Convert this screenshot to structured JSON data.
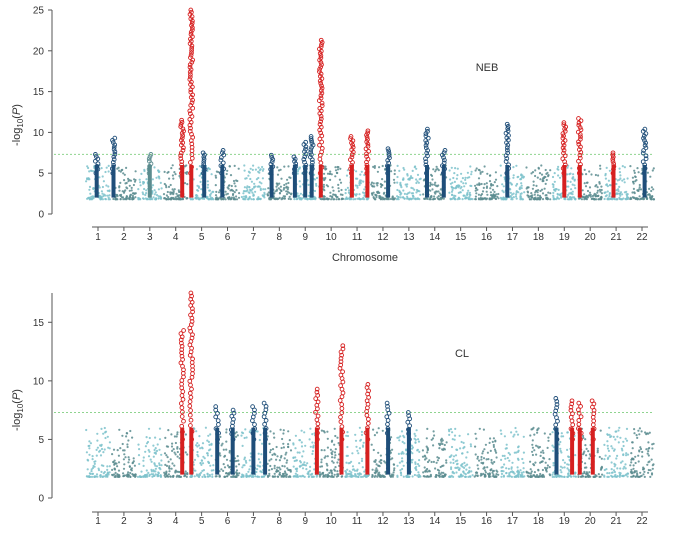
{
  "figure": {
    "panels": [
      "NEB",
      "CL"
    ]
  },
  "colors": {
    "teal": "#5b8c8f",
    "light_teal": "#7dc2cb",
    "dark_blue": "#1f4e79",
    "red": "#d62020",
    "threshold": "#8fd48f",
    "axis": "#555555"
  },
  "chart_data": [
    {
      "type": "scatter",
      "subtype": "manhattan",
      "panel_label": "NEB",
      "ylabel": "-log10(P)",
      "ylabel_parts": {
        "base": "-log",
        "sub": "10",
        "open": "(",
        "var": "P",
        "close": ")"
      },
      "xlabel": "Chromosome",
      "ylim": [
        0,
        25
      ],
      "yticks": [
        0,
        5,
        10,
        15,
        20,
        25
      ],
      "threshold": 7.3,
      "grid": false,
      "chromosomes": [
        "1",
        "2",
        "3",
        "4",
        "5",
        "6",
        "7",
        "8",
        "9",
        "10",
        "11",
        "12",
        "13",
        "14",
        "15",
        "16",
        "17",
        "18",
        "19",
        "20",
        "21",
        "22"
      ],
      "peaks": [
        {
          "chr": "1",
          "pos": 0.45,
          "p": 7.3,
          "color": "dark_blue"
        },
        {
          "chr": "2",
          "pos": 0.1,
          "p": 9.3,
          "color": "dark_blue"
        },
        {
          "chr": "3",
          "pos": 0.5,
          "p": 7.3,
          "color": "teal"
        },
        {
          "chr": "4",
          "pos": 0.75,
          "p": 11.5,
          "color": "red"
        },
        {
          "chr": "5",
          "pos": 0.1,
          "p": 25.0,
          "color": "red"
        },
        {
          "chr": "5",
          "pos": 0.6,
          "p": 7.5,
          "color": "dark_blue"
        },
        {
          "chr": "6",
          "pos": 0.3,
          "p": 7.8,
          "color": "dark_blue"
        },
        {
          "chr": "8",
          "pos": 0.2,
          "p": 7.2,
          "color": "dark_blue"
        },
        {
          "chr": "9",
          "pos": 0.1,
          "p": 7.0,
          "color": "dark_blue"
        },
        {
          "chr": "9",
          "pos": 0.5,
          "p": 8.8,
          "color": "dark_blue"
        },
        {
          "chr": "9",
          "pos": 0.75,
          "p": 9.5,
          "color": "dark_blue"
        },
        {
          "chr": "10",
          "pos": 0.1,
          "p": 21.3,
          "color": "red"
        },
        {
          "chr": "11",
          "pos": 0.3,
          "p": 9.5,
          "color": "red"
        },
        {
          "chr": "11",
          "pos": 0.9,
          "p": 10.2,
          "color": "red"
        },
        {
          "chr": "12",
          "pos": 0.7,
          "p": 8.0,
          "color": "dark_blue"
        },
        {
          "chr": "14",
          "pos": 0.2,
          "p": 10.4,
          "color": "dark_blue"
        },
        {
          "chr": "14",
          "pos": 0.85,
          "p": 7.8,
          "color": "dark_blue"
        },
        {
          "chr": "17",
          "pos": 0.3,
          "p": 11.0,
          "color": "dark_blue"
        },
        {
          "chr": "19",
          "pos": 0.5,
          "p": 11.2,
          "color": "red"
        },
        {
          "chr": "20",
          "pos": 0.1,
          "p": 11.7,
          "color": "red"
        },
        {
          "chr": "21",
          "pos": 0.4,
          "p": 7.5,
          "color": "red"
        },
        {
          "chr": "22",
          "pos": 0.6,
          "p": 10.4,
          "color": "dark_blue"
        }
      ]
    },
    {
      "type": "scatter",
      "subtype": "manhattan",
      "panel_label": "CL",
      "ylabel": "-log10(P)",
      "ylabel_parts": {
        "base": "-log",
        "sub": "10",
        "open": "(",
        "var": "P",
        "close": ")"
      },
      "xlabel": "",
      "ylim": [
        0,
        17.5
      ],
      "yticks": [
        0,
        5,
        10,
        15
      ],
      "threshold": 7.3,
      "grid": false,
      "chromosomes": [
        "1",
        "2",
        "3",
        "4",
        "5",
        "6",
        "7",
        "8",
        "9",
        "10",
        "11",
        "12",
        "13",
        "14",
        "15",
        "16",
        "17",
        "18",
        "19",
        "20",
        "21",
        "22"
      ],
      "peaks": [
        {
          "chr": "4",
          "pos": 0.75,
          "p": 14.3,
          "color": "red"
        },
        {
          "chr": "5",
          "pos": 0.1,
          "p": 17.5,
          "color": "red"
        },
        {
          "chr": "6",
          "pos": 0.1,
          "p": 7.8,
          "color": "dark_blue"
        },
        {
          "chr": "6",
          "pos": 0.7,
          "p": 7.5,
          "color": "dark_blue"
        },
        {
          "chr": "7",
          "pos": 0.5,
          "p": 7.8,
          "color": "dark_blue"
        },
        {
          "chr": "7",
          "pos": 0.95,
          "p": 8.1,
          "color": "dark_blue"
        },
        {
          "chr": "9",
          "pos": 0.95,
          "p": 9.3,
          "color": "red"
        },
        {
          "chr": "10",
          "pos": 0.9,
          "p": 13.0,
          "color": "red"
        },
        {
          "chr": "11",
          "pos": 0.9,
          "p": 9.7,
          "color": "red"
        },
        {
          "chr": "12",
          "pos": 0.7,
          "p": 8.1,
          "color": "dark_blue"
        },
        {
          "chr": "13",
          "pos": 0.5,
          "p": 7.3,
          "color": "dark_blue"
        },
        {
          "chr": "19",
          "pos": 0.2,
          "p": 8.5,
          "color": "dark_blue"
        },
        {
          "chr": "19",
          "pos": 0.8,
          "p": 8.3,
          "color": "red"
        },
        {
          "chr": "20",
          "pos": 0.1,
          "p": 8.1,
          "color": "red"
        },
        {
          "chr": "20",
          "pos": 0.6,
          "p": 8.3,
          "color": "red"
        }
      ]
    }
  ]
}
